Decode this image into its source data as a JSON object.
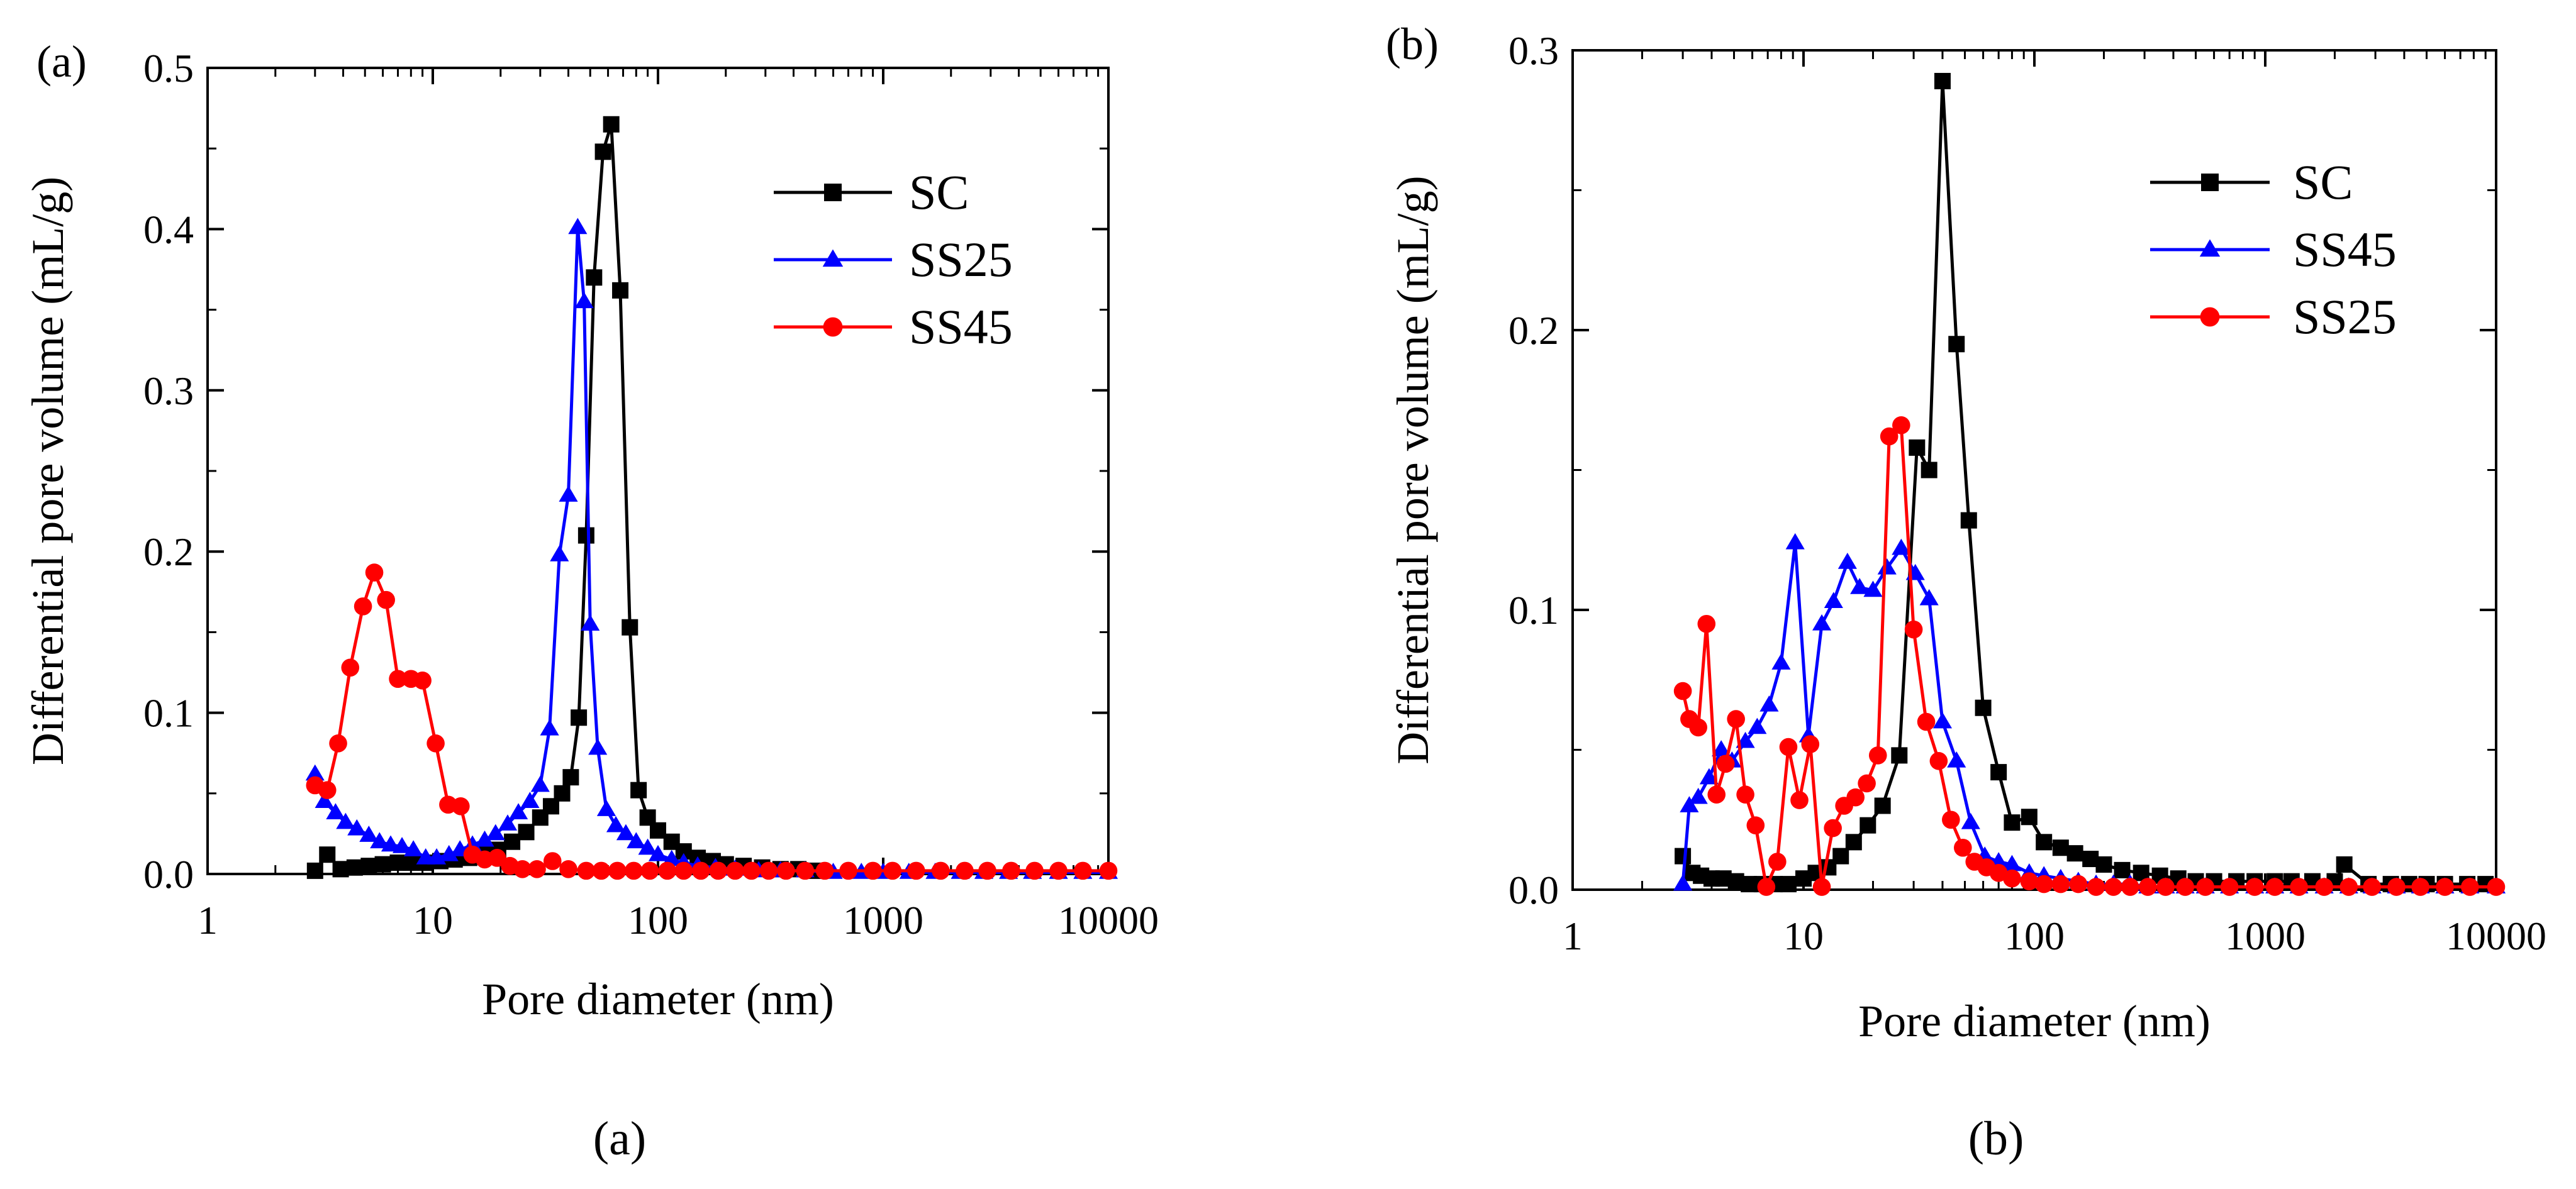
{
  "chart_data": [
    {
      "type": "line",
      "panel_label": "(a)",
      "caption": "(a)",
      "xscale": "log",
      "xlim": [
        1,
        10000
      ],
      "ylim": [
        0,
        0.5
      ],
      "xticks": [
        1,
        10,
        100,
        1000,
        10000
      ],
      "xtick_labels": [
        "1",
        "10",
        "100",
        "1000",
        "10000"
      ],
      "yticks": [
        0,
        0.1,
        0.2,
        0.3,
        0.4,
        0.5
      ],
      "ytick_labels": [
        "0.0",
        "0.1",
        "0.2",
        "0.3",
        "0.4",
        "0.5"
      ],
      "xlabel": "Pore diameter (nm)",
      "ylabel": "Differential pore volume (mL/g)",
      "legend_position": "top-right",
      "series": [
        {
          "name": "SC",
          "color": "#000000",
          "marker": "square",
          "x": [
            3.0,
            3.4,
            3.9,
            4.5,
            5.2,
            6.0,
            7.0,
            8.0,
            9.3,
            10.8,
            12.5,
            14.5,
            16.8,
            19.5,
            22.5,
            26.0,
            30.0,
            33.5,
            37.5,
            41.0,
            44.5,
            48.0,
            52.0,
            57.0,
            62.0,
            68.0,
            75.0,
            82.0,
            90.0,
            100,
            115,
            130,
            150,
            175,
            200,
            240,
            290,
            350,
            420,
            500
          ],
          "y": [
            0.002,
            0.012,
            0.003,
            0.004,
            0.005,
            0.006,
            0.007,
            0.007,
            0.007,
            0.008,
            0.009,
            0.01,
            0.012,
            0.015,
            0.02,
            0.026,
            0.035,
            0.042,
            0.05,
            0.06,
            0.097,
            0.21,
            0.37,
            0.448,
            0.465,
            0.362,
            0.153,
            0.052,
            0.035,
            0.027,
            0.02,
            0.014,
            0.01,
            0.008,
            0.006,
            0.005,
            0.004,
            0.003,
            0.003,
            0.002
          ]
        },
        {
          "name": "SS25",
          "color": "#0000ff",
          "marker": "triangle",
          "x": [
            3.0,
            3.3,
            3.7,
            4.1,
            4.6,
            5.2,
            5.8,
            6.5,
            7.3,
            8.2,
            9.3,
            10.4,
            11.8,
            13.2,
            15.0,
            17.0,
            19.0,
            21.5,
            24.0,
            27.0,
            30.0,
            33.0,
            36.5,
            40.0,
            44.0,
            47.0,
            50.0,
            54.0,
            59.0,
            65.0,
            72.0,
            80.0,
            90.0,
            100,
            115,
            130,
            150,
            180,
            220,
            280,
            350,
            450,
            600,
            800,
            1000,
            1300,
            1700,
            2200,
            2800,
            3600,
            4600,
            6000,
            7700,
            10000
          ],
          "y": [
            0.062,
            0.045,
            0.038,
            0.032,
            0.028,
            0.024,
            0.02,
            0.018,
            0.017,
            0.015,
            0.01,
            0.01,
            0.012,
            0.015,
            0.018,
            0.021,
            0.025,
            0.031,
            0.038,
            0.045,
            0.055,
            0.09,
            0.198,
            0.235,
            0.401,
            0.355,
            0.155,
            0.078,
            0.04,
            0.03,
            0.025,
            0.02,
            0.016,
            0.012,
            0.009,
            0.007,
            0.005,
            0.004,
            0.003,
            0.002,
            0.002,
            0.002,
            0.001,
            0.001,
            0.001,
            0.001,
            0.001,
            0.001,
            0.001,
            0.001,
            0.001,
            0.001,
            0.001,
            0.001
          ]
        },
        {
          "name": "SS45",
          "color": "#ff0000",
          "marker": "circle",
          "x": [
            3.0,
            3.4,
            3.8,
            4.3,
            4.9,
            5.5,
            6.2,
            7.0,
            8.0,
            9.0,
            10.3,
            11.7,
            13.3,
            15.0,
            17.0,
            19.3,
            22.0,
            25.0,
            29.0,
            34.0,
            40.0,
            48.0,
            56.0,
            66.0,
            78.0,
            92.0,
            110,
            130,
            155,
            185,
            220,
            260,
            310,
            370,
            450,
            550,
            700,
            900,
            1100,
            1400,
            1800,
            2300,
            2900,
            3700,
            4700,
            6000,
            7700,
            10000
          ],
          "y": [
            0.055,
            0.052,
            0.081,
            0.128,
            0.166,
            0.187,
            0.17,
            0.121,
            0.121,
            0.12,
            0.081,
            0.043,
            0.042,
            0.012,
            0.009,
            0.01,
            0.005,
            0.003,
            0.003,
            0.008,
            0.003,
            0.002,
            0.002,
            0.002,
            0.002,
            0.002,
            0.002,
            0.002,
            0.002,
            0.002,
            0.002,
            0.002,
            0.002,
            0.002,
            0.002,
            0.002,
            0.002,
            0.002,
            0.002,
            0.002,
            0.002,
            0.002,
            0.002,
            0.002,
            0.002,
            0.002,
            0.002,
            0.002
          ]
        }
      ]
    },
    {
      "type": "line",
      "panel_label": "(b)",
      "caption": "(b)",
      "xscale": "log",
      "xlim": [
        1,
        10000
      ],
      "ylim": [
        0,
        0.3
      ],
      "xticks": [
        1,
        10,
        100,
        1000,
        10000
      ],
      "xtick_labels": [
        "1",
        "10",
        "100",
        "1000",
        "10000"
      ],
      "yticks": [
        0,
        0.1,
        0.2,
        0.3
      ],
      "ytick_labels": [
        "0.0",
        "0.1",
        "0.2",
        "0.3"
      ],
      "xlabel": "Pore diameter (nm)",
      "ylabel": "Differential pore volume (mL/g)",
      "legend_position": "top-right",
      "series": [
        {
          "name": "SC",
          "color": "#000000",
          "marker": "square",
          "x": [
            3.0,
            3.3,
            3.6,
            4.0,
            4.5,
            5.1,
            5.8,
            6.6,
            7.5,
            8.6,
            10.0,
            11.3,
            12.8,
            14.5,
            16.5,
            19.0,
            22.0,
            26.0,
            31.0,
            35.0,
            40.0,
            46.0,
            52.0,
            60.0,
            70.0,
            80.0,
            95.0,
            110,
            130,
            150,
            175,
            200,
            240,
            290,
            350,
            420,
            500,
            600,
            750,
            900,
            1100,
            1300,
            1600,
            2000,
            2200,
            2800,
            3500,
            4200,
            5000,
            6000,
            7500,
            9000
          ],
          "y": [
            0.012,
            0.006,
            0.005,
            0.004,
            0.004,
            0.003,
            0.002,
            0.002,
            0.002,
            0.002,
            0.004,
            0.006,
            0.008,
            0.012,
            0.017,
            0.023,
            0.03,
            0.048,
            0.158,
            0.15,
            0.289,
            0.195,
            0.132,
            0.065,
            0.042,
            0.024,
            0.026,
            0.017,
            0.015,
            0.013,
            0.011,
            0.009,
            0.007,
            0.006,
            0.005,
            0.004,
            0.003,
            0.003,
            0.003,
            0.003,
            0.003,
            0.003,
            0.003,
            0.003,
            0.009,
            0.002,
            0.002,
            0.002,
            0.002,
            0.002,
            0.002,
            0.002
          ]
        },
        {
          "name": "SS45",
          "color": "#0000ff",
          "marker": "triangle",
          "x": [
            3.0,
            3.2,
            3.5,
            3.9,
            4.4,
            4.9,
            5.6,
            6.3,
            7.1,
            8.0,
            9.2,
            10.5,
            12.0,
            13.5,
            15.5,
            17.5,
            20.0,
            23.0,
            26.5,
            30.5,
            35.0,
            40.0,
            46.0,
            53.0,
            61.0,
            70.0,
            80.0,
            95.0,
            110,
            130,
            155,
            185,
            220,
            260,
            310,
            370,
            450,
            550,
            700,
            900,
            1100,
            1400,
            1800,
            2300,
            2900,
            3700,
            4700,
            6000,
            7700,
            10000
          ],
          "y": [
            0.002,
            0.03,
            0.033,
            0.04,
            0.05,
            0.046,
            0.053,
            0.058,
            0.066,
            0.081,
            0.124,
            0.055,
            0.095,
            0.103,
            0.117,
            0.108,
            0.107,
            0.115,
            0.122,
            0.113,
            0.104,
            0.06,
            0.046,
            0.024,
            0.012,
            0.01,
            0.009,
            0.006,
            0.005,
            0.004,
            0.003,
            0.002,
            0.002,
            0.002,
            0.001,
            0.001,
            0.001,
            0.001,
            0.001,
            0.001,
            0.001,
            0.001,
            0.001,
            0.001,
            0.001,
            0.001,
            0.001,
            0.001,
            0.001,
            0.001
          ]
        },
        {
          "name": "SS25",
          "color": "#ff0000",
          "marker": "circle",
          "x": [
            3.0,
            3.2,
            3.5,
            3.8,
            4.2,
            4.6,
            5.1,
            5.6,
            6.2,
            6.9,
            7.7,
            8.6,
            9.6,
            10.7,
            12.0,
            13.4,
            15.0,
            16.8,
            18.8,
            21.0,
            23.5,
            26.5,
            30.0,
            34.0,
            38.5,
            43.5,
            49.0,
            55.0,
            62.0,
            70.0,
            80.0,
            95.0,
            110,
            130,
            155,
            185,
            220,
            260,
            310,
            370,
            450,
            550,
            700,
            900,
            1100,
            1400,
            1800,
            2300,
            2900,
            3700,
            4700,
            6000,
            7700,
            10000
          ],
          "y": [
            0.071,
            0.061,
            0.058,
            0.095,
            0.034,
            0.045,
            0.061,
            0.034,
            0.023,
            0.001,
            0.01,
            0.051,
            0.032,
            0.052,
            0.001,
            0.022,
            0.03,
            0.033,
            0.038,
            0.048,
            0.162,
            0.166,
            0.093,
            0.06,
            0.046,
            0.025,
            0.015,
            0.01,
            0.008,
            0.006,
            0.004,
            0.003,
            0.002,
            0.002,
            0.002,
            0.001,
            0.001,
            0.001,
            0.001,
            0.001,
            0.001,
            0.001,
            0.001,
            0.001,
            0.001,
            0.001,
            0.001,
            0.001,
            0.001,
            0.001,
            0.001,
            0.001,
            0.001,
            0.001
          ]
        }
      ]
    }
  ]
}
